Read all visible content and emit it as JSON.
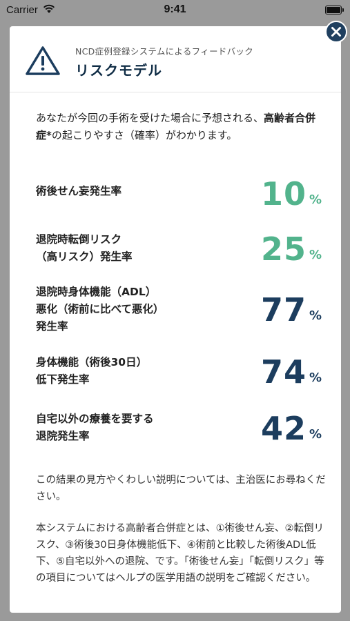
{
  "status": {
    "carrier": "Carrier",
    "time": "9:41"
  },
  "header": {
    "subtitle": "NCD症例登録システムによるフィードバック",
    "title": "リスクモデル"
  },
  "intro": {
    "part1": "あなたが今回の手術を受けた場合に予想される、",
    "bold": "高齢者合併症*",
    "part2": "の起こりやすさ（確率）がわかります。"
  },
  "metrics": [
    {
      "label": "術後せん妄発生率",
      "value": "10",
      "unit": "%",
      "color": "#52b38c"
    },
    {
      "label": "退院時転倒リスク\n（高リスク）発生率",
      "value": "25",
      "unit": "%",
      "color": "#52b38c"
    },
    {
      "label": "退院時身体機能（ADL）\n悪化（術前に比べて悪化）\n発生率",
      "value": "77",
      "unit": "%",
      "color": "#1c3d5e"
    },
    {
      "label": "身体機能（術後30日）\n低下発生率",
      "value": "74",
      "unit": "%",
      "color": "#1c3d5e"
    },
    {
      "label": "自宅以外の療養を要する\n退院発生率",
      "value": "42",
      "unit": "%",
      "color": "#1c3d5e"
    }
  ],
  "notes": {
    "advice": "この結果の見方やくわしい説明については、主治医にお尋ねください。",
    "definition": "本システムにおける高齢者合併症とは、①術後せん妄、②転倒リスク、③術後30日身体機能低下、④術前と比較した術後ADL低下、⑤自宅以外への退院、です。「術後せん妄」「転倒リスク」等の項目についてはヘルプの医学用語の説明をご確認ください。"
  },
  "icons": {
    "header": "warning-icon",
    "close": "close-icon",
    "wifi": "wifi-icon",
    "battery": "battery-icon"
  }
}
